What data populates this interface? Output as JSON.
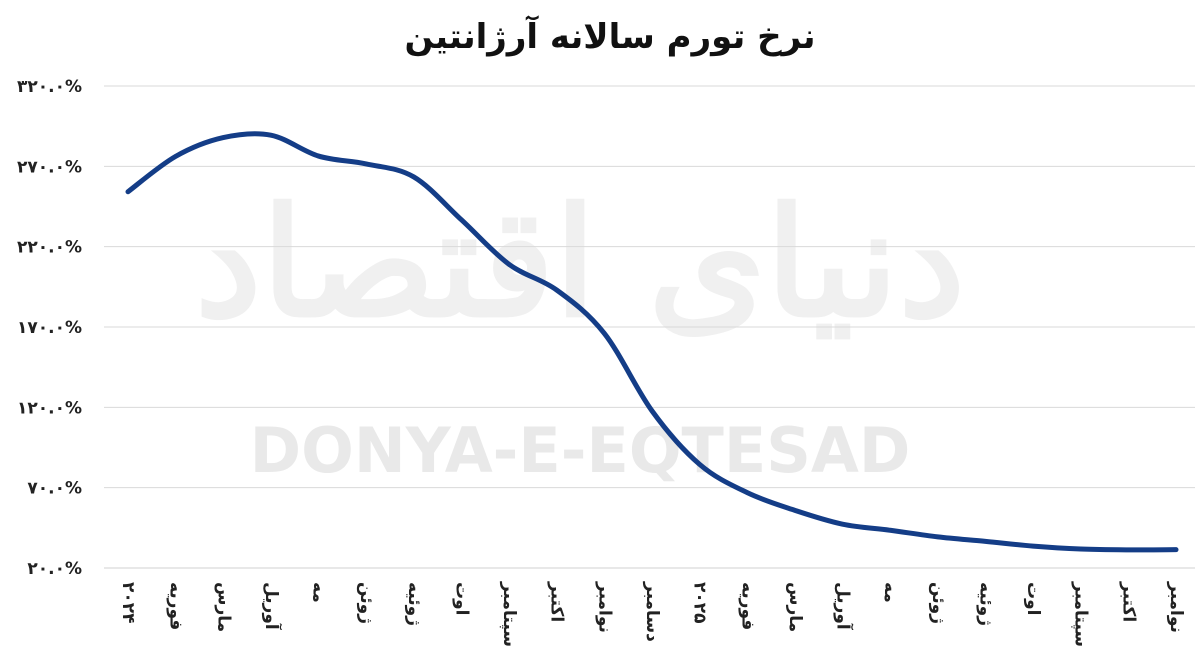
{
  "watermark": {
    "latin": "DONYA-E-EQTESAD",
    "persian": "دنیای اقتصاد"
  },
  "chart_data": {
    "type": "line",
    "title": "نرخ تورم سالانه آرژانتین",
    "xlabel": "",
    "ylabel": "",
    "categories": [
      "۲۰۲۴",
      "فوریه",
      "مارس",
      "آوریل",
      "مه",
      "ژوئن",
      "ژوئیه",
      "اوت",
      "سپتامبر",
      "اکتبر",
      "نوامبر",
      "دسامبر",
      "۲۰۲۵",
      "فوریه",
      "مارس",
      "آوریل",
      "مه",
      "ژوئن",
      "ژوئیه",
      "اوت",
      "سپتامبر",
      "اکتبر",
      "نوامبر"
    ],
    "series": [
      {
        "values": [
          254.2,
          276.2,
          287.9,
          289.4,
          276.4,
          271.5,
          263.4,
          236.7,
          209.0,
          193.0,
          166.0,
          117.8,
          84.5,
          66.9,
          55.9,
          47.3,
          43.5,
          39.4,
          36.6,
          33.6,
          31.8,
          31.3,
          31.4
        ]
      }
    ],
    "y_ticks": [
      "۲۰.۰%",
      "۷۰.۰%",
      "۱۲۰.۰%",
      "۱۷۰.۰%",
      "۲۲۰.۰%",
      "۲۷۰.۰%",
      "۳۲۰.۰%"
    ],
    "y_tick_values": [
      20,
      70,
      120,
      170,
      220,
      270,
      320
    ],
    "ylim": [
      20,
      320
    ],
    "grid": true,
    "line_color": "#143d87",
    "grid_color": "#d9d9d9",
    "legend": "none"
  }
}
